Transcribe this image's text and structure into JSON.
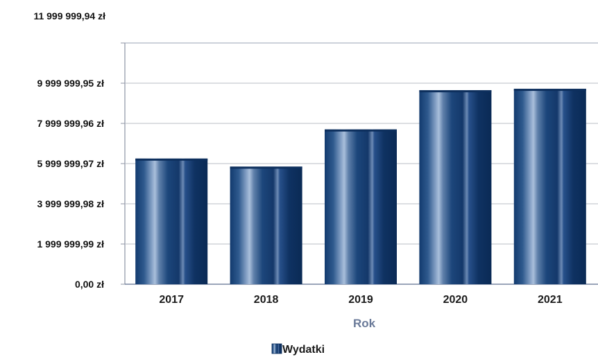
{
  "chart_data": {
    "type": "bar",
    "categories": [
      "2017",
      "2018",
      "2019",
      "2020",
      "2021"
    ],
    "series": [
      {
        "name": "Wydatki",
        "values": [
          6250000,
          5850000,
          7700000,
          9650000,
          9720000
        ]
      }
    ],
    "xlabel": "Rok",
    "ylabel": "",
    "ylim": [
      0,
      11999999.94
    ],
    "yticks": [
      {
        "value": 0,
        "label": "0,00 zł"
      },
      {
        "value": 1999999.99,
        "label": "1 999 999,99 zł"
      },
      {
        "value": 3999999.98,
        "label": "3 999 999,98 zł"
      },
      {
        "value": 5999999.97,
        "label": "5 999 999,97 zł"
      },
      {
        "value": 7999999.96,
        "label": "7 999 999,96 zł"
      },
      {
        "value": 9999999.95,
        "label": "9 999 999,95 zł"
      },
      {
        "value": 11999999.94,
        "label": "11 999 999,94 zł"
      }
    ],
    "grid": true,
    "legend": "bottom",
    "colors": {
      "bar_dark": "#0c2f5e",
      "bar_mid": "#1f4a80",
      "bar_light": "#8aa6c8",
      "axis_label": "#6a7a99",
      "grid": "#b8bcc6"
    }
  }
}
